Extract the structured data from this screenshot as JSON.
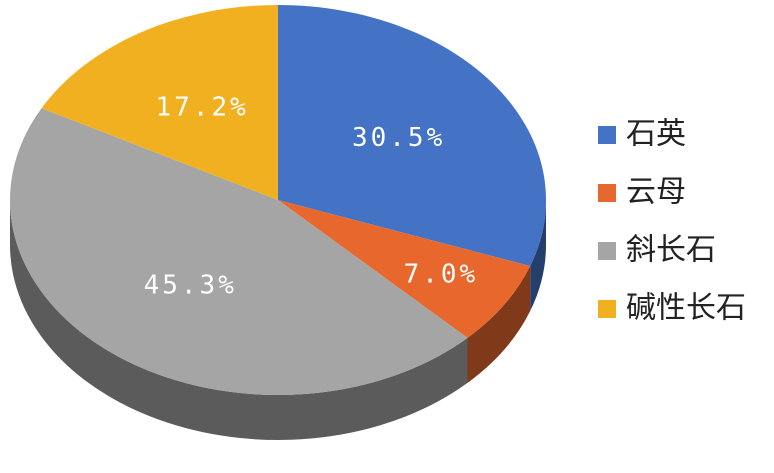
{
  "chart_data": {
    "type": "pie",
    "categories": [
      "石英",
      "云母",
      "斜长石",
      "碱性长石"
    ],
    "values": [
      30.5,
      7.0,
      45.3,
      17.2
    ],
    "value_labels": [
      "30.5%",
      "7.0%",
      "45.3%",
      "17.2%"
    ],
    "colors": [
      "#4472c4",
      "#e8672d",
      "#a5a5a5",
      "#f1b01f"
    ],
    "legend": "right"
  }
}
